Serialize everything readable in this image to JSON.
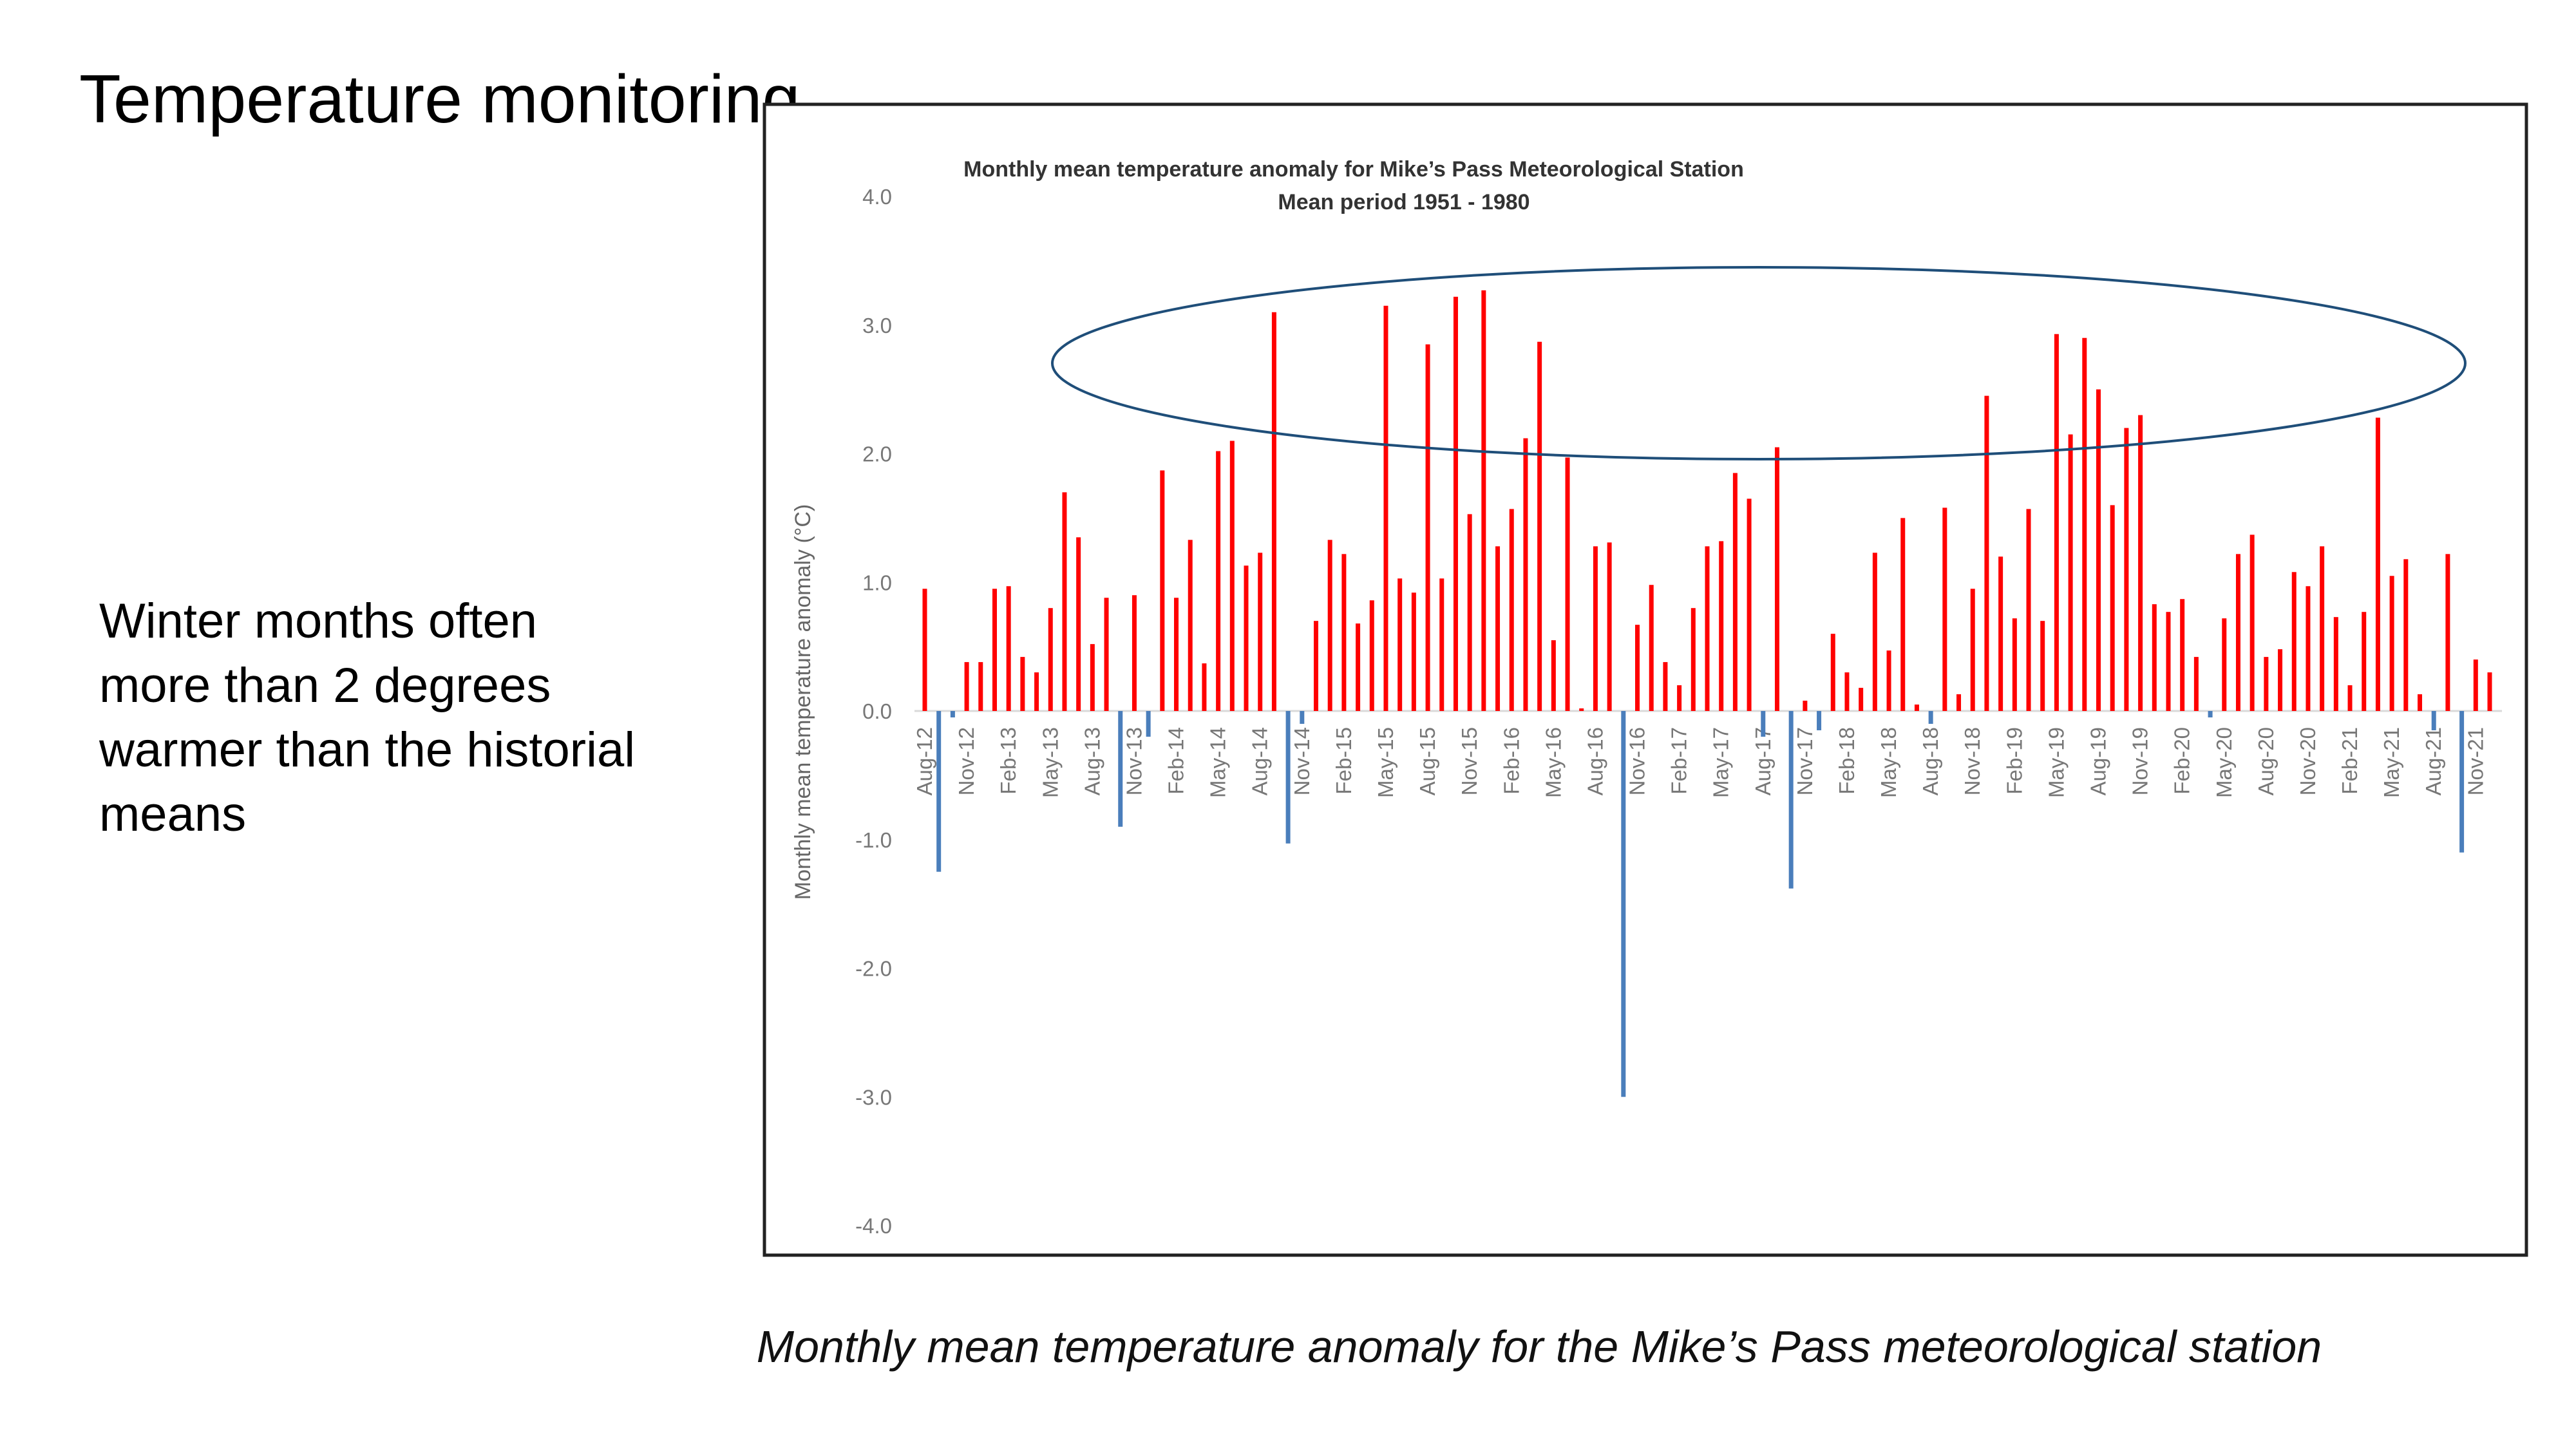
{
  "slide_title": "Temperature monitoring",
  "note_lines": [
    "Winter months often",
    "more than 2 degrees",
    "warmer than the historial",
    "means"
  ],
  "caption": "Monthly mean temperature anomaly for the Mike’s Pass meteorological station",
  "chart_data": {
    "type": "bar",
    "title": "Monthly mean temperature anomaly for Mike’s Pass Meteorological Station",
    "subtitle": "Mean period 1951 - 1980",
    "y_label": "Monthly mean temperature anomaly (°C)",
    "positive_color": "#ff0000",
    "negative_color": "#4a7ebb",
    "ylim": [
      -4,
      4
    ],
    "yticks": [
      {
        "value": 4,
        "label": "4.0"
      },
      {
        "value": 3,
        "label": "3.0"
      },
      {
        "value": 2,
        "label": "2.0"
      },
      {
        "value": 1,
        "label": "1.0"
      },
      {
        "value": 0,
        "label": "0.0"
      },
      {
        "value": -1,
        "label": "-1.0"
      },
      {
        "value": -2,
        "label": "-2.0"
      },
      {
        "value": -3,
        "label": "-3.0"
      },
      {
        "value": -4,
        "label": "-4.0"
      }
    ],
    "categories": [
      "Aug-12",
      null,
      null,
      "Nov-12",
      null,
      null,
      "Feb-13",
      null,
      null,
      "May-13",
      null,
      null,
      "Aug-13",
      null,
      null,
      "Nov-13",
      null,
      null,
      "Feb-14",
      null,
      null,
      "May-14",
      null,
      null,
      "Aug-14",
      null,
      null,
      "Nov-14",
      null,
      null,
      "Feb-15",
      null,
      null,
      "May-15",
      null,
      null,
      "Aug-15",
      null,
      null,
      "Nov-15",
      null,
      null,
      "Feb-16",
      null,
      null,
      "May-16",
      null,
      null,
      "Aug-16",
      null,
      null,
      "Nov-16",
      null,
      null,
      "Feb-17",
      null,
      null,
      "May-17",
      null,
      null,
      "Aug-17",
      null,
      null,
      "Nov-17",
      null,
      null,
      "Feb-18",
      null,
      null,
      "May-18",
      null,
      null,
      "Aug-18",
      null,
      null,
      "Nov-18",
      null,
      null,
      "Feb-19",
      null,
      null,
      "May-19",
      null,
      null,
      "Aug-19",
      null,
      null,
      "Nov-19",
      null,
      null,
      "Feb-20",
      null,
      null,
      "May-20",
      null,
      null,
      "Aug-20",
      null,
      null,
      "Nov-20",
      null,
      null,
      "Feb-21",
      null,
      null,
      "May-21",
      null,
      null,
      "Aug-21",
      null,
      null,
      "Nov-21",
      null
    ],
    "values": [
      0.95,
      -1.25,
      -0.05,
      0.38,
      0.38,
      0.95,
      0.97,
      0.42,
      0.3,
      0.8,
      1.7,
      1.35,
      0.52,
      0.88,
      -0.9,
      0.9,
      -0.2,
      1.87,
      0.88,
      1.33,
      0.37,
      2.02,
      2.1,
      1.13,
      1.23,
      3.1,
      -1.03,
      -0.1,
      0.7,
      1.33,
      1.22,
      0.68,
      0.86,
      3.15,
      1.03,
      0.92,
      2.85,
      1.03,
      3.22,
      1.53,
      3.27,
      1.28,
      1.57,
      2.12,
      2.87,
      0.55,
      1.97,
      0.02,
      1.28,
      1.31,
      -3.0,
      0.67,
      0.98,
      0.38,
      0.2,
      0.8,
      1.28,
      1.32,
      1.85,
      1.65,
      -0.2,
      2.05,
      -1.38,
      0.08,
      -0.15,
      0.6,
      0.3,
      0.18,
      1.23,
      0.47,
      1.5,
      0.05,
      -0.1,
      1.58,
      0.13,
      0.95,
      2.45,
      1.2,
      0.72,
      1.57,
      0.7,
      2.93,
      2.15,
      2.9,
      2.5,
      1.6,
      2.2,
      2.3,
      0.83,
      0.77,
      0.87,
      0.42,
      -0.05,
      0.72,
      1.22,
      1.37,
      0.42,
      0.48,
      1.08,
      0.97,
      1.28,
      0.73,
      0.2,
      0.77,
      2.28,
      1.05,
      1.18,
      0.13,
      -0.15,
      1.22,
      -1.1,
      0.4,
      0.3
    ]
  }
}
